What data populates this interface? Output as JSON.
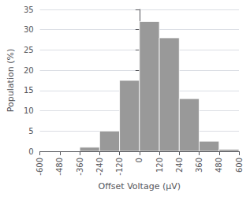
{
  "chart_data": {
    "type": "histogram",
    "bins": [
      -600,
      -480,
      -360,
      -240,
      -120,
      0,
      120,
      240,
      360,
      480,
      600
    ],
    "values": [
      0.0,
      0.0,
      1.0,
      5.0,
      17.5,
      32.0,
      28.0,
      13.0,
      2.5,
      0.5
    ],
    "color": "#999999",
    "xlabel": "Offset Voltage (μV)",
    "ylabel": "Population (%)",
    "xlim": [
      -600,
      600
    ],
    "ylim": [
      0,
      35
    ],
    "xticks": [
      -600,
      -480,
      -360,
      -240,
      -120,
      0,
      120,
      240,
      360,
      480,
      600
    ],
    "yticks": [
      0,
      5,
      10,
      15,
      20,
      25,
      30,
      35
    ],
    "grid": true
  }
}
